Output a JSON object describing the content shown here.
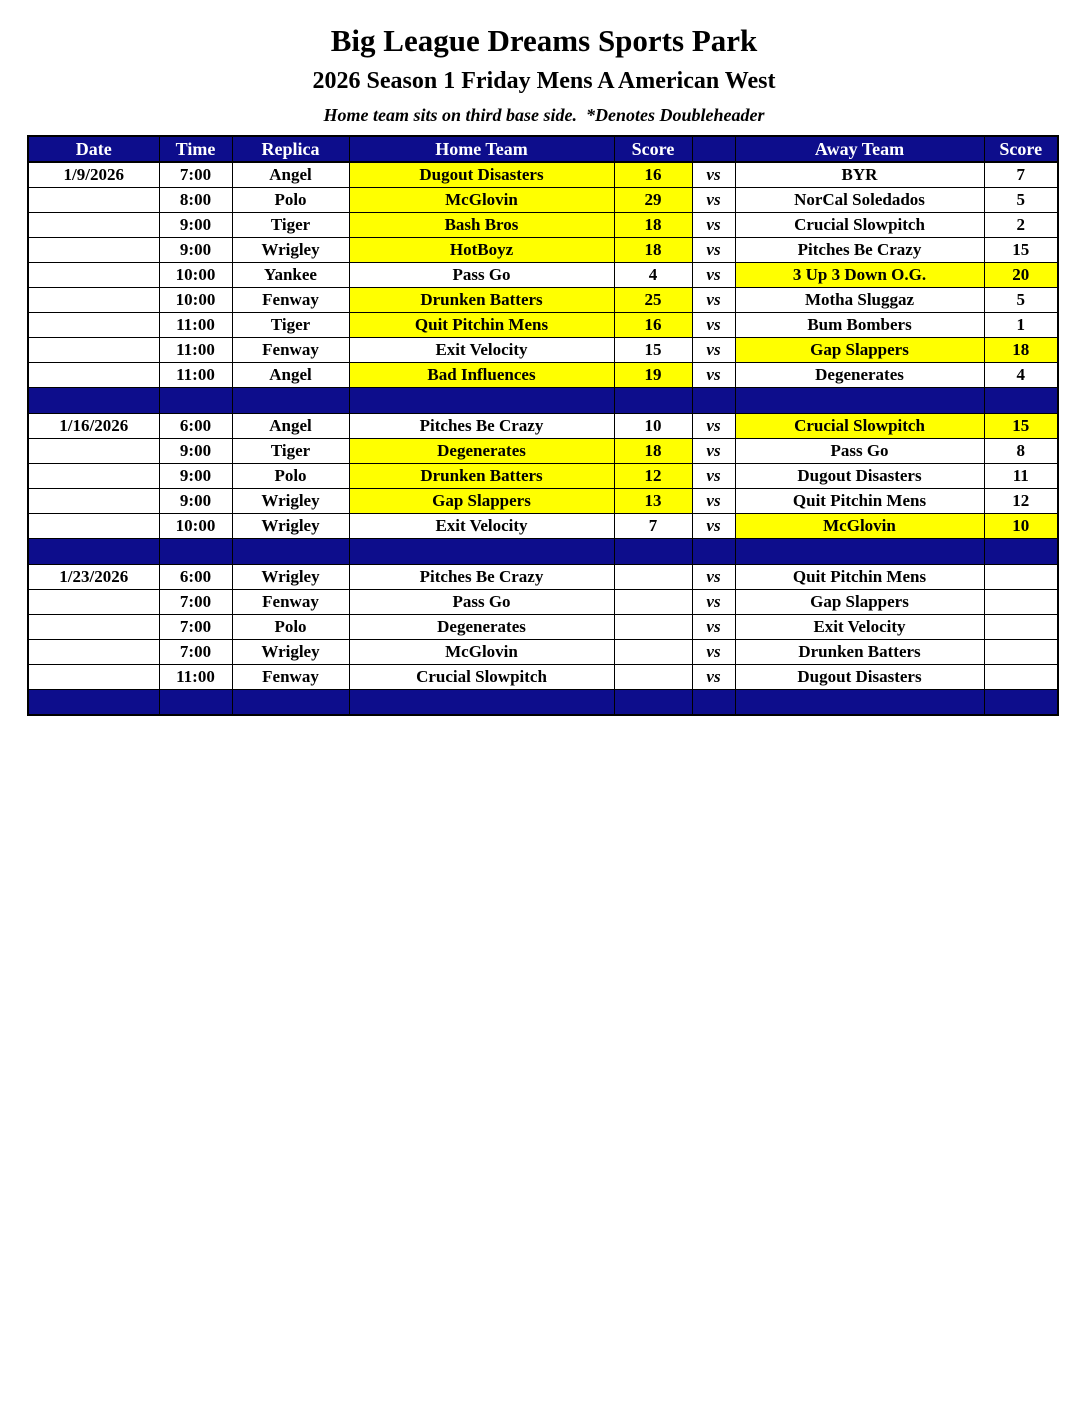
{
  "page": {
    "title": "Big League Dreams Sports Park",
    "subtitle": "2026 Season 1 Friday Mens A American West",
    "note": "Home team sits on third base side.  *Denotes Doubleheader"
  },
  "colors": {
    "header_bg": "#0d0d8c",
    "header_text": "#ffffff",
    "winner_highlight": "#ffff00",
    "separator_bg": "#0d0d8c"
  },
  "table": {
    "columns": [
      "Date",
      "Time",
      "Replica",
      "Home Team",
      "Score",
      "",
      "Away Team",
      "Score"
    ],
    "vs_label": "vs",
    "blocks": [
      {
        "date": "1/9/2026",
        "games": [
          {
            "time": "7:00",
            "replica": "Angel",
            "home": "Dugout Disasters",
            "home_score": "16",
            "away": "BYR",
            "away_score": "7",
            "winner": "home"
          },
          {
            "time": "8:00",
            "replica": "Polo",
            "home": "McGlovin",
            "home_score": "29",
            "away": "NorCal Soledados",
            "away_score": "5",
            "winner": "home"
          },
          {
            "time": "9:00",
            "replica": "Tiger",
            "home": "Bash Bros",
            "home_score": "18",
            "away": "Crucial Slowpitch",
            "away_score": "2",
            "winner": "home"
          },
          {
            "time": "9:00",
            "replica": "Wrigley",
            "home": "HotBoyz",
            "home_score": "18",
            "away": "Pitches Be Crazy",
            "away_score": "15",
            "winner": "home"
          },
          {
            "time": "10:00",
            "replica": "Yankee",
            "home": "Pass Go",
            "home_score": "4",
            "away": "3 Up 3 Down O.G.",
            "away_score": "20",
            "winner": "away"
          },
          {
            "time": "10:00",
            "replica": "Fenway",
            "home": "Drunken Batters",
            "home_score": "25",
            "away": "Motha Sluggaz",
            "away_score": "5",
            "winner": "home"
          },
          {
            "time": "11:00",
            "replica": "Tiger",
            "home": "Quit Pitchin Mens",
            "home_score": "16",
            "away": "Bum Bombers",
            "away_score": "1",
            "winner": "home"
          },
          {
            "time": "11:00",
            "replica": "Fenway",
            "home": "Exit Velocity",
            "home_score": "15",
            "away": "Gap Slappers",
            "away_score": "18",
            "winner": "away"
          },
          {
            "time": "11:00",
            "replica": "Angel",
            "home": "Bad Influences",
            "home_score": "19",
            "away": "Degenerates",
            "away_score": "4",
            "winner": "home"
          }
        ]
      },
      {
        "date": "1/16/2026",
        "games": [
          {
            "time": "6:00",
            "replica": "Angel",
            "home": "Pitches Be Crazy",
            "home_score": "10",
            "away": "Crucial Slowpitch",
            "away_score": "15",
            "winner": "away"
          },
          {
            "time": "9:00",
            "replica": "Tiger",
            "home": "Degenerates",
            "home_score": "18",
            "away": "Pass Go",
            "away_score": "8",
            "winner": "home"
          },
          {
            "time": "9:00",
            "replica": "Polo",
            "home": "Drunken Batters",
            "home_score": "12",
            "away": "Dugout Disasters",
            "away_score": "11",
            "winner": "home"
          },
          {
            "time": "9:00",
            "replica": "Wrigley",
            "home": "Gap Slappers",
            "home_score": "13",
            "away": "Quit Pitchin Mens",
            "away_score": "12",
            "winner": "home"
          },
          {
            "time": "10:00",
            "replica": "Wrigley",
            "home": "Exit Velocity",
            "home_score": "7",
            "away": "McGlovin",
            "away_score": "10",
            "winner": "away"
          }
        ]
      },
      {
        "date": "1/23/2026",
        "games": [
          {
            "time": "6:00",
            "replica": "Wrigley",
            "home": "Pitches Be Crazy",
            "home_score": "",
            "away": "Quit Pitchin Mens",
            "away_score": "",
            "winner": ""
          },
          {
            "time": "7:00",
            "replica": "Fenway",
            "home": "Pass Go",
            "home_score": "",
            "away": "Gap Slappers",
            "away_score": "",
            "winner": ""
          },
          {
            "time": "7:00",
            "replica": "Polo",
            "home": "Degenerates",
            "home_score": "",
            "away": "Exit Velocity",
            "away_score": "",
            "winner": ""
          },
          {
            "time": "7:00",
            "replica": "Wrigley",
            "home": "McGlovin",
            "home_score": "",
            "away": "Drunken Batters",
            "away_score": "",
            "winner": ""
          },
          {
            "time": "11:00",
            "replica": "Fenway",
            "home": "Crucial Slowpitch",
            "home_score": "",
            "away": "Dugout Disasters",
            "away_score": "",
            "winner": ""
          }
        ]
      }
    ]
  }
}
